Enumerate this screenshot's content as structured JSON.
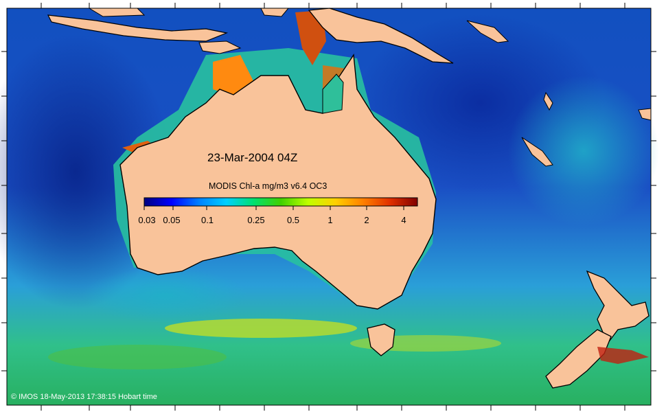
{
  "map": {
    "date_label": "23-Mar-2004 04Z",
    "colorbar": {
      "title": "MODIS Chl-a mg/m3 v6.4 OC3",
      "ticks": [
        "0.03",
        "0.05",
        "0.1",
        "0.25",
        "0.5",
        "1",
        "2",
        "4"
      ],
      "colors": [
        "#00007f",
        "#0000ff",
        "#0080ff",
        "#00d0ff",
        "#00e070",
        "#40d000",
        "#c0ff00",
        "#ffd000",
        "#ff8000",
        "#e03000",
        "#800000"
      ]
    },
    "credit": "© IMOS 18-May-2013 17:38:15 Hobart time",
    "land_color": "#f9c39a",
    "ocean_colors": {
      "deep": "#0a2a9e",
      "mid": "#1f73d6",
      "shelf": "#2fbf9a",
      "coastal": "#ff9a1a"
    }
  }
}
